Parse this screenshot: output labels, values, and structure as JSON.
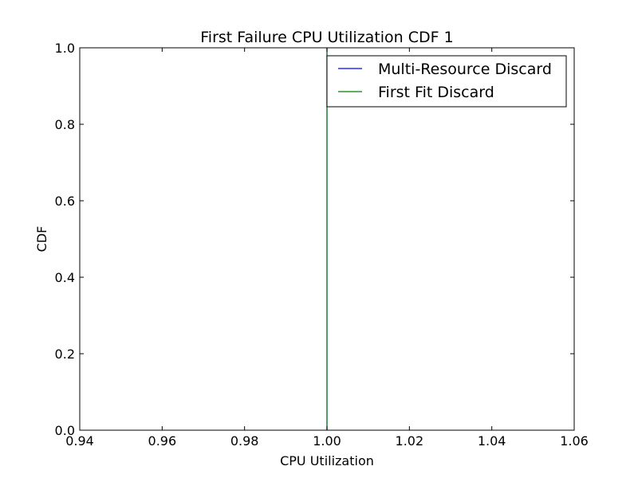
{
  "chart_data": {
    "type": "line",
    "title": "First Failure CPU Utilization CDF 1",
    "xlabel": "CPU Utilization",
    "ylabel": "CDF",
    "xlim": [
      0.94,
      1.06
    ],
    "ylim": [
      0.0,
      1.0
    ],
    "xticks": [
      0.94,
      0.96,
      0.98,
      1.0,
      1.02,
      1.04,
      1.06
    ],
    "xtick_labels": [
      "0.94",
      "0.96",
      "0.98",
      "1.00",
      "1.02",
      "1.04",
      "1.06"
    ],
    "yticks": [
      0.0,
      0.2,
      0.4,
      0.6,
      0.8,
      1.0
    ],
    "ytick_labels": [
      "0.0",
      "0.2",
      "0.4",
      "0.6",
      "0.8",
      "1.0"
    ],
    "grid": false,
    "legend_position": "top-right",
    "series": [
      {
        "name": "Multi-Resource Discard",
        "color": "#0000ff",
        "x": [
          1.0,
          1.0
        ],
        "y": [
          0.0,
          1.0
        ]
      },
      {
        "name": "First Fit Discard",
        "color": "#008000",
        "x": [
          1.0,
          1.0
        ],
        "y": [
          0.0,
          1.0
        ]
      }
    ]
  }
}
